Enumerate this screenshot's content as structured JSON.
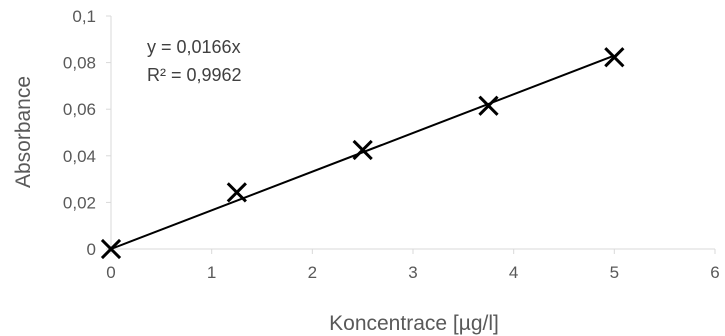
{
  "chart_data": {
    "type": "scatter",
    "title": "",
    "xlabel": "Koncentrace [µg/l]",
    "ylabel": "Absorbance",
    "xlim": [
      0,
      6
    ],
    "ylim": [
      0,
      0.1
    ],
    "x_ticks": [
      "0",
      "1",
      "2",
      "3",
      "4",
      "5",
      "6"
    ],
    "y_ticks": [
      "0",
      "0,02",
      "0,04",
      "0,06",
      "0,08",
      "0,1"
    ],
    "grid": false,
    "marker": "x",
    "series": [
      {
        "x": [
          0,
          1.25,
          2.5,
          3.75,
          5
        ],
        "y": [
          0,
          0.0243,
          0.0425,
          0.0615,
          0.0823
        ]
      }
    ],
    "trendline": {
      "type": "linear",
      "slope": 0.0166,
      "intercept": 0,
      "equation_label": "y = 0,0166x",
      "r2_label": "R² = 0,9962"
    }
  }
}
